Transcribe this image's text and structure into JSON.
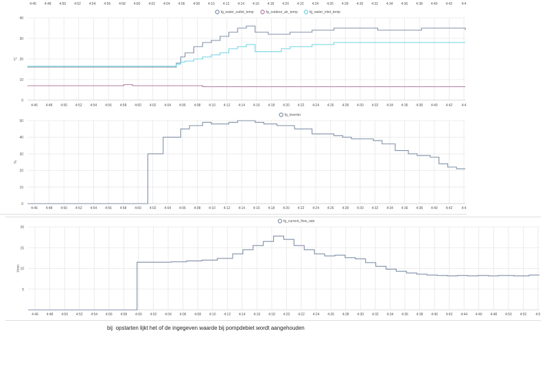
{
  "caption": "bij  opstarten lijkt het of de ingegeven waarde bij pompdebiet wordt aangehouden",
  "colors": {
    "grid": "#e6e6e6",
    "axis": "#cccccc",
    "separator": "#dddddd"
  },
  "top_strip_ticks": [
    "4:46",
    "4:48",
    "4:50",
    "4:52",
    "4:54",
    "4:56",
    "4:58",
    "4:60",
    "4:02",
    "4:04",
    "4:06",
    "4:08",
    "4:10",
    "4:12",
    "4:14",
    "4:16",
    "4:18",
    "4:20",
    "4:22",
    "4:24",
    "4:26",
    "4:28",
    "4:30",
    "4:32",
    "4:34",
    "4:36",
    "4:38",
    "4:40",
    "4:42",
    "4:4"
  ],
  "chart_data": [
    {
      "type": "line",
      "ylabel": "°C",
      "ylim": [
        0,
        40
      ],
      "yticks": [
        "40",
        "30",
        "20",
        "10",
        "0"
      ],
      "xticks": [
        "4:46",
        "4:48",
        "4:50",
        "4:52",
        "4:54",
        "4:56",
        "4:58",
        "4:60",
        "4:02",
        "4:04",
        "4:06",
        "4:08",
        "4:10",
        "4:12",
        "4:14",
        "4:16",
        "4:18",
        "4:20",
        "4:22",
        "4:24",
        "4:26",
        "4:28",
        "4:30",
        "4:32",
        "4:34",
        "4:36",
        "4:38",
        "4:40",
        "4:42",
        "4:4"
      ],
      "legend_position": "top",
      "series": [
        {
          "name": "fg_water_outlet_temp",
          "color": "#7f8fa6",
          "x": [
            0,
            5,
            10,
            15,
            20,
            25,
            28,
            30,
            32,
            33,
            34,
            35,
            36,
            38,
            40,
            42,
            44,
            46,
            48,
            50,
            52,
            55,
            58,
            60,
            65,
            70,
            75,
            80,
            85,
            90,
            95,
            100
          ],
          "y": [
            16,
            16,
            16,
            16,
            16,
            16,
            16,
            16,
            16,
            16,
            18,
            21,
            23,
            26,
            28,
            29,
            31,
            33,
            35,
            36,
            33,
            32,
            32,
            33,
            34,
            35,
            35,
            34,
            34,
            35,
            35,
            34
          ]
        },
        {
          "name": "fg_outdoor_air_temp",
          "color": "#b07aa1",
          "x": [
            0,
            10,
            20,
            22,
            24,
            26,
            30,
            40,
            50,
            60,
            70,
            80,
            90,
            100
          ],
          "y": [
            7,
            7,
            7,
            7.5,
            7,
            7,
            7,
            6.5,
            6.5,
            6.5,
            6.5,
            6.5,
            6.5,
            6.5
          ]
        },
        {
          "name": "fg_water_inlet_temp",
          "color": "#6dd3e0",
          "x": [
            0,
            5,
            10,
            15,
            20,
            25,
            28,
            30,
            32,
            33,
            34,
            35,
            36,
            38,
            40,
            42,
            44,
            46,
            48,
            50,
            52,
            55,
            58,
            60,
            65,
            70,
            75,
            80,
            85,
            90,
            95,
            100
          ],
          "y": [
            16.5,
            16.5,
            16.5,
            16.5,
            16.5,
            16.5,
            16.5,
            16.5,
            16.5,
            16.5,
            17.5,
            18.5,
            19,
            20,
            21,
            22,
            23,
            25,
            26,
            27,
            23.5,
            23.5,
            25,
            26,
            27,
            28,
            28,
            28,
            28,
            28,
            28,
            28
          ]
        }
      ]
    },
    {
      "type": "line",
      "ylabel": "%",
      "ylim": [
        0,
        50
      ],
      "yticks": [
        "50",
        "40",
        "30",
        "20",
        "10",
        "0"
      ],
      "xticks": [
        "4:46",
        "4:48",
        "4:50",
        "4:52",
        "4:54",
        "4:56",
        "4:58",
        "4:60",
        "4:02",
        "4:04",
        "4:06",
        "4:08",
        "4:10",
        "4:12",
        "4:14",
        "4:16",
        "4:18",
        "4:20",
        "4:22",
        "4:24",
        "4:26",
        "4:28",
        "4:30",
        "4:32",
        "4:34",
        "4:36",
        "4:38",
        "4:40",
        "4:42",
        "4:4"
      ],
      "legend_position": "top",
      "series": [
        {
          "name": "fg_inverter",
          "color": "#7f8fa6",
          "x": [
            0,
            10,
            20,
            27,
            27.5,
            30,
            31,
            33,
            35,
            37,
            40,
            42,
            44,
            46,
            48,
            50,
            52,
            54,
            55,
            57,
            59,
            61,
            63,
            65,
            67,
            70,
            72,
            74,
            76,
            79,
            81,
            84,
            87,
            89,
            92,
            94,
            96,
            98,
            100
          ],
          "y": [
            0,
            0,
            0,
            0,
            30,
            30,
            40,
            40,
            45,
            47,
            49,
            48,
            48,
            49,
            50,
            50,
            49,
            48,
            48,
            47,
            47,
            45,
            45,
            42,
            42,
            41,
            40,
            39,
            39,
            38,
            36,
            32,
            30,
            29,
            28,
            24,
            22,
            21,
            21
          ]
        }
      ]
    },
    {
      "type": "line",
      "ylabel": "l/min",
      "ylim": [
        0,
        20
      ],
      "yticks": [
        "20",
        "15",
        "10",
        "5"
      ],
      "xticks": [
        "4:46",
        "4:48",
        "4:50",
        "4:52",
        "4:54",
        "4:56",
        "4:58",
        "4:60",
        "4:02",
        "4:04",
        "4:06",
        "4:08",
        "4:10",
        "4:12",
        "4:14",
        "4:16",
        "4:18",
        "4:20",
        "4:22",
        "4:24",
        "4:26",
        "4:28",
        "4:30",
        "4:32",
        "4:34",
        "4:36",
        "4:38",
        "4:40",
        "4:42",
        "4:44",
        "4:46",
        "4:48",
        "4:50",
        "4:52",
        "4:5"
      ],
      "legend_position": "top",
      "series": [
        {
          "name": "fg_current_flow_rate",
          "color": "#7f8fa6",
          "x": [
            0,
            10,
            20,
            21,
            21.3,
            25,
            28,
            31,
            34,
            37,
            40,
            42,
            44,
            46,
            48,
            50,
            52,
            54,
            56,
            58,
            60,
            62,
            64,
            66,
            68,
            70,
            72,
            74,
            76,
            78,
            80,
            82,
            84,
            86,
            88,
            90,
            92,
            95,
            98,
            100
          ],
          "y": [
            0,
            0,
            0,
            0,
            11.5,
            11.5,
            11.6,
            11.8,
            12,
            12.4,
            13.5,
            14.5,
            15.5,
            16.5,
            17.8,
            17,
            15.5,
            14.5,
            13.5,
            13,
            13.2,
            12.6,
            12.3,
            11.4,
            10.5,
            9.8,
            9.3,
            8.9,
            8.6,
            8.4,
            8.3,
            8.2,
            8.3,
            8.2,
            8.3,
            8.2,
            8.3,
            8.2,
            8.4,
            8.4
          ]
        }
      ]
    }
  ]
}
